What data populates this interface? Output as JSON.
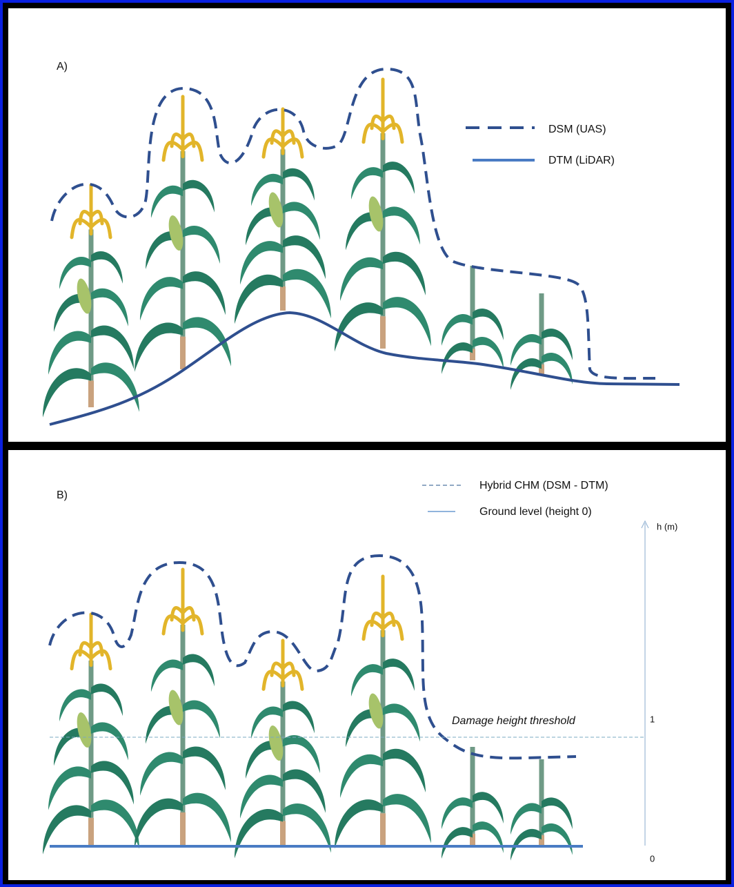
{
  "panel_a": {
    "label": "A)",
    "legend": [
      "DSM (UAS)",
      "DTM (LiDAR)"
    ]
  },
  "panel_b": {
    "label": "B)",
    "legend": [
      "Hybrid CHM (DSM - DTM)",
      "Ground level (height 0)"
    ],
    "axis": {
      "title": "h (m)",
      "labels": [
        "1",
        "0"
      ]
    },
    "threshold": "Damage height threshold"
  }
}
